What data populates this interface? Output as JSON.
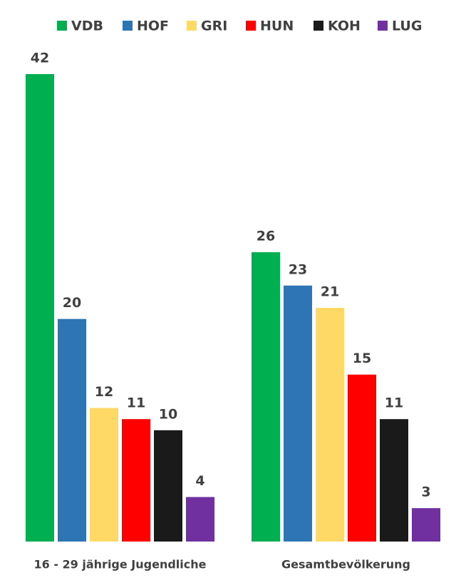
{
  "chart_data": {
    "type": "bar",
    "categories": [
      "16 - 29 jährige Jugendliche",
      "Gesamtbevölkerung"
    ],
    "series": [
      {
        "name": "VDB",
        "color": "#00b050",
        "values": [
          42,
          26
        ]
      },
      {
        "name": "HOF",
        "color": "#2e75b6",
        "values": [
          20,
          23
        ]
      },
      {
        "name": "GRI",
        "color": "#ffd966",
        "values": [
          12,
          21
        ]
      },
      {
        "name": "HUN",
        "color": "#ff0000",
        "values": [
          11,
          15
        ]
      },
      {
        "name": "KOH",
        "color": "#1a1a1a",
        "values": [
          10,
          11
        ]
      },
      {
        "name": "LUG",
        "color": "#7030a0",
        "values": [
          4,
          3
        ]
      }
    ],
    "legend": "top"
  }
}
